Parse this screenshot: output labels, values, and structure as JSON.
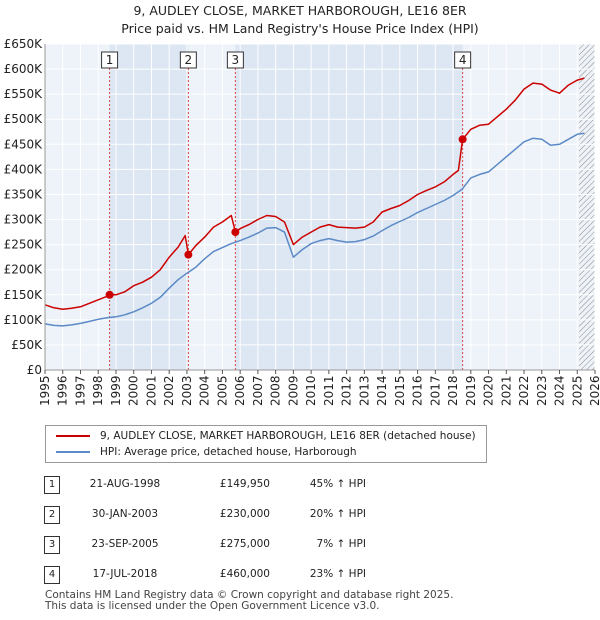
{
  "header": {
    "title": "9, AUDLEY CLOSE, MARKET HARBOROUGH, LE16 8ER",
    "subtitle": "Price paid vs. HM Land Registry's House Price Index (HPI)"
  },
  "colors": {
    "price_line": "#cc0000",
    "hpi_line": "#5b8ac6",
    "shade": "#dde6f3",
    "hatch": "#888888",
    "grid": "#ffffff",
    "marker_line": "#dd4444"
  },
  "chart_data": {
    "type": "line",
    "title": "9, AUDLEY CLOSE, MARKET HARBOROUGH, LE16 8ER",
    "subtitle": "Price paid vs. HM Land Registry's House Price Index (HPI)",
    "xlim": [
      1995,
      2026
    ],
    "ylim": [
      0,
      650000
    ],
    "y_ticks": [
      0,
      50000,
      100000,
      150000,
      200000,
      250000,
      300000,
      350000,
      400000,
      450000,
      500000,
      550000,
      600000,
      650000
    ],
    "y_tick_labels": [
      "£0",
      "£50K",
      "£100K",
      "£150K",
      "£200K",
      "£250K",
      "£300K",
      "£350K",
      "£400K",
      "£450K",
      "£500K",
      "£550K",
      "£600K",
      "£650K"
    ],
    "x_ticks": [
      1995,
      1996,
      1997,
      1998,
      1999,
      2000,
      2001,
      2002,
      2003,
      2004,
      2005,
      2006,
      2007,
      2008,
      2009,
      2010,
      2011,
      2012,
      2013,
      2014,
      2015,
      2016,
      2017,
      2018,
      2019,
      2020,
      2021,
      2022,
      2023,
      2024,
      2025,
      2026
    ],
    "x_tick_labels": [
      "1995",
      "1996",
      "1997",
      "1998",
      "1999",
      "2000",
      "2001",
      "2002",
      "2003",
      "2004",
      "2005",
      "2006",
      "2007",
      "2008",
      "2009",
      "2010",
      "2011",
      "2012",
      "2013",
      "2014",
      "2015",
      "2016",
      "2017",
      "2018",
      "2019",
      "2020",
      "2021",
      "2022",
      "2023",
      "2024",
      "2025",
      "2026"
    ],
    "legend_position": "bottom",
    "shaded_spans": [
      [
        1998.64,
        2003.08
      ],
      [
        2005.73,
        2018.54
      ]
    ],
    "hatched_from": 2025.1,
    "sales": [
      {
        "id": "1",
        "x": 1998.64,
        "price": 149950
      },
      {
        "id": "2",
        "x": 2003.08,
        "price": 230000
      },
      {
        "id": "3",
        "x": 2005.73,
        "price": 275000
      },
      {
        "id": "4",
        "x": 2018.54,
        "price": 460000
      }
    ],
    "series": [
      {
        "name": "9, AUDLEY CLOSE, MARKET HARBOROUGH, LE16 8ER (detached house)",
        "key": "price",
        "points": [
          [
            1995.0,
            130000
          ],
          [
            1995.5,
            124000
          ],
          [
            1996.0,
            121000
          ],
          [
            1996.5,
            123000
          ],
          [
            1997.0,
            126000
          ],
          [
            1997.5,
            133000
          ],
          [
            1998.0,
            140000
          ],
          [
            1998.5,
            147000
          ],
          [
            1998.64,
            149950
          ],
          [
            1999.0,
            150000
          ],
          [
            1999.5,
            156000
          ],
          [
            2000.0,
            168000
          ],
          [
            2000.5,
            175000
          ],
          [
            2001.0,
            185000
          ],
          [
            2001.5,
            200000
          ],
          [
            2002.0,
            225000
          ],
          [
            2002.5,
            245000
          ],
          [
            2002.9,
            268000
          ],
          [
            2003.08,
            230000
          ],
          [
            2003.5,
            248000
          ],
          [
            2004.0,
            265000
          ],
          [
            2004.5,
            285000
          ],
          [
            2005.0,
            295000
          ],
          [
            2005.5,
            308000
          ],
          [
            2005.73,
            275000
          ],
          [
            2006.0,
            282000
          ],
          [
            2006.5,
            290000
          ],
          [
            2007.0,
            300000
          ],
          [
            2007.5,
            308000
          ],
          [
            2008.0,
            306000
          ],
          [
            2008.5,
            295000
          ],
          [
            2009.0,
            250000
          ],
          [
            2009.5,
            265000
          ],
          [
            2010.0,
            275000
          ],
          [
            2010.5,
            285000
          ],
          [
            2011.0,
            290000
          ],
          [
            2011.5,
            285000
          ],
          [
            2012.0,
            284000
          ],
          [
            2012.5,
            283000
          ],
          [
            2013.0,
            285000
          ],
          [
            2013.5,
            295000
          ],
          [
            2014.0,
            315000
          ],
          [
            2014.5,
            322000
          ],
          [
            2015.0,
            328000
          ],
          [
            2015.5,
            338000
          ],
          [
            2016.0,
            350000
          ],
          [
            2016.5,
            358000
          ],
          [
            2017.0,
            365000
          ],
          [
            2017.5,
            375000
          ],
          [
            2018.0,
            390000
          ],
          [
            2018.3,
            398000
          ],
          [
            2018.54,
            460000
          ],
          [
            2019.0,
            480000
          ],
          [
            2019.5,
            488000
          ],
          [
            2020.0,
            490000
          ],
          [
            2020.5,
            505000
          ],
          [
            2021.0,
            520000
          ],
          [
            2021.5,
            538000
          ],
          [
            2022.0,
            560000
          ],
          [
            2022.5,
            572000
          ],
          [
            2023.0,
            570000
          ],
          [
            2023.5,
            558000
          ],
          [
            2024.0,
            552000
          ],
          [
            2024.5,
            568000
          ],
          [
            2025.0,
            578000
          ],
          [
            2025.4,
            582000
          ]
        ]
      },
      {
        "name": "HPI: Average price, detached house, Harborough",
        "key": "hpi",
        "points": [
          [
            1995.0,
            92000
          ],
          [
            1995.5,
            89000
          ],
          [
            1996.0,
            88000
          ],
          [
            1996.5,
            90000
          ],
          [
            1997.0,
            93000
          ],
          [
            1997.5,
            97000
          ],
          [
            1998.0,
            101000
          ],
          [
            1998.5,
            104000
          ],
          [
            1999.0,
            106000
          ],
          [
            1999.5,
            110000
          ],
          [
            2000.0,
            116000
          ],
          [
            2000.5,
            124000
          ],
          [
            2001.0,
            133000
          ],
          [
            2001.5,
            145000
          ],
          [
            2002.0,
            163000
          ],
          [
            2002.5,
            180000
          ],
          [
            2003.0,
            193000
          ],
          [
            2003.5,
            205000
          ],
          [
            2004.0,
            222000
          ],
          [
            2004.5,
            236000
          ],
          [
            2005.0,
            244000
          ],
          [
            2005.5,
            252000
          ],
          [
            2006.0,
            258000
          ],
          [
            2006.5,
            265000
          ],
          [
            2007.0,
            273000
          ],
          [
            2007.5,
            283000
          ],
          [
            2008.0,
            284000
          ],
          [
            2008.5,
            275000
          ],
          [
            2009.0,
            225000
          ],
          [
            2009.5,
            240000
          ],
          [
            2010.0,
            252000
          ],
          [
            2010.5,
            258000
          ],
          [
            2011.0,
            262000
          ],
          [
            2011.5,
            258000
          ],
          [
            2012.0,
            255000
          ],
          [
            2012.5,
            256000
          ],
          [
            2013.0,
            260000
          ],
          [
            2013.5,
            267000
          ],
          [
            2014.0,
            278000
          ],
          [
            2014.5,
            288000
          ],
          [
            2015.0,
            296000
          ],
          [
            2015.5,
            304000
          ],
          [
            2016.0,
            314000
          ],
          [
            2016.5,
            322000
          ],
          [
            2017.0,
            330000
          ],
          [
            2017.5,
            338000
          ],
          [
            2018.0,
            348000
          ],
          [
            2018.5,
            360000
          ],
          [
            2019.0,
            383000
          ],
          [
            2019.5,
            390000
          ],
          [
            2020.0,
            395000
          ],
          [
            2020.5,
            410000
          ],
          [
            2021.0,
            425000
          ],
          [
            2021.5,
            440000
          ],
          [
            2022.0,
            455000
          ],
          [
            2022.5,
            462000
          ],
          [
            2023.0,
            460000
          ],
          [
            2023.5,
            448000
          ],
          [
            2024.0,
            450000
          ],
          [
            2024.5,
            460000
          ],
          [
            2025.0,
            470000
          ],
          [
            2025.4,
            472000
          ]
        ]
      }
    ]
  },
  "legend": {
    "price_label": "9, AUDLEY CLOSE, MARKET HARBOROUGH, LE16 8ER (detached house)",
    "hpi_label": "HPI: Average price, detached house, Harborough"
  },
  "sales_table": [
    {
      "num": "1",
      "date": "21-AUG-1998",
      "price": "£149,950",
      "hpi": "45% ↑ HPI"
    },
    {
      "num": "2",
      "date": "30-JAN-2003",
      "price": "£230,000",
      "hpi": "20% ↑ HPI"
    },
    {
      "num": "3",
      "date": "23-SEP-2005",
      "price": "£275,000",
      "hpi": "7% ↑ HPI"
    },
    {
      "num": "4",
      "date": "17-JUL-2018",
      "price": "£460,000",
      "hpi": "23% ↑ HPI"
    }
  ],
  "footer": {
    "line1": "Contains HM Land Registry data © Crown copyright and database right 2025.",
    "line2": "This data is licensed under the Open Government Licence v3.0."
  }
}
